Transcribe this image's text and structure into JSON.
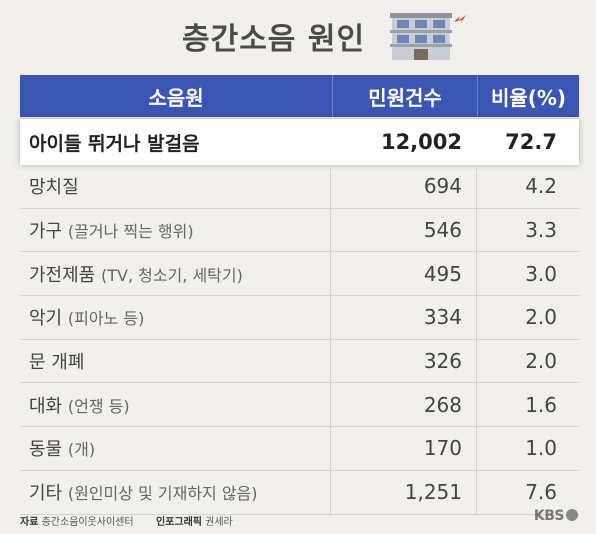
{
  "title": "층간소음 원인",
  "chart_data": {
    "type": "table",
    "title": "층간소음 원인",
    "columns": [
      "소음원",
      "민원건수",
      "비율(%)"
    ],
    "highlight_row": {
      "source": "아이들 뛰거나 발걸음",
      "count": "12,002",
      "ratio": "72.7"
    },
    "rows": [
      {
        "name": "망치질",
        "note": "",
        "count": "694",
        "ratio": "4.2"
      },
      {
        "name": "가구",
        "note": "(끌거나 찍는 행위)",
        "count": "546",
        "ratio": "3.3"
      },
      {
        "name": "가전제품",
        "note": "(TV, 청소기, 세탁기)",
        "count": "495",
        "ratio": "3.0"
      },
      {
        "name": "악기",
        "note": "(피아노 등)",
        "count": "334",
        "ratio": "2.0"
      },
      {
        "name": "문 개폐",
        "note": "",
        "count": "326",
        "ratio": "2.0"
      },
      {
        "name": "대화",
        "note": "(언쟁 등)",
        "count": "268",
        "ratio": "1.6"
      },
      {
        "name": "동물",
        "note": "(개)",
        "count": "170",
        "ratio": "1.0"
      },
      {
        "name": "기타",
        "note": "(원인미상 및 기재하지 않음)",
        "count": "1,251",
        "ratio": "7.6"
      }
    ]
  },
  "footer": {
    "source_label": "자료",
    "source_value": "층간소음이웃사이센터",
    "graphic_label": "인포그래픽",
    "graphic_value": "권세라",
    "brand": "KBS"
  },
  "colors": {
    "header_bg": "#3a56b2",
    "page_bg": "#f1f0ec",
    "accent_red": "#e03a2f"
  },
  "icons": {
    "title_icon": "building-with-noise-icon"
  }
}
